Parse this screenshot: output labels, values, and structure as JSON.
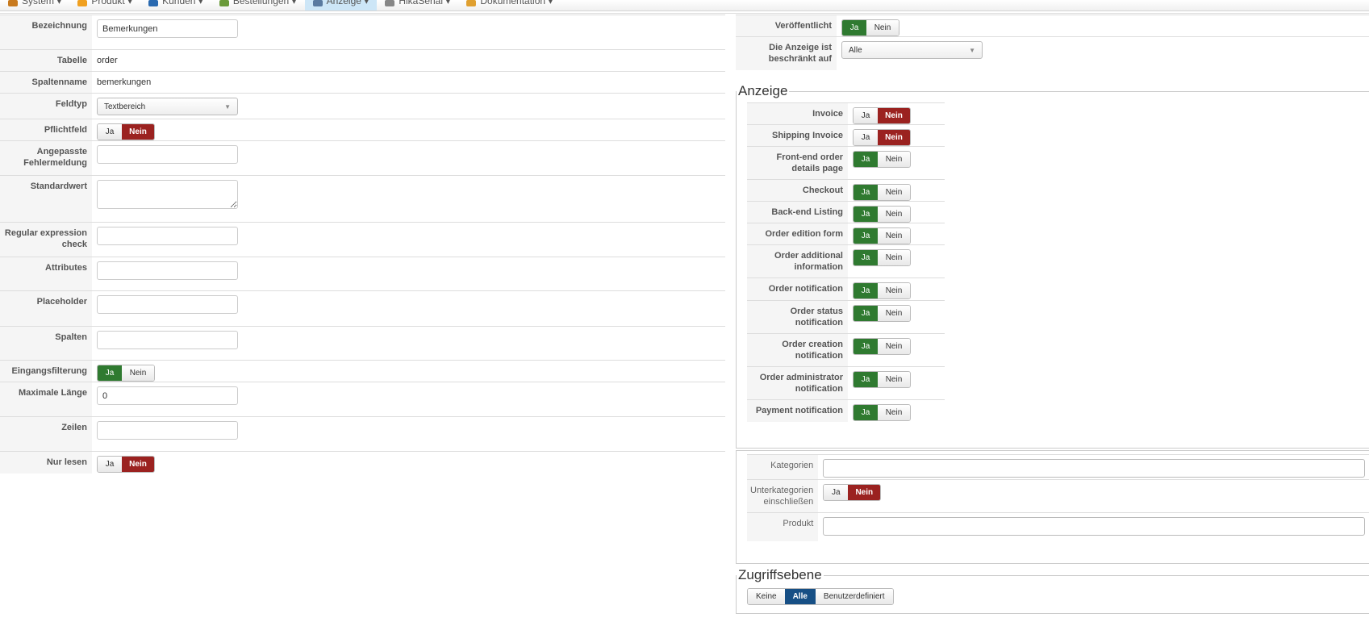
{
  "nav": [
    {
      "label": "System",
      "color": "#c87a1e"
    },
    {
      "label": "Produkt",
      "color": "#f0a020"
    },
    {
      "label": "Kunden",
      "color": "#2a6ab0"
    },
    {
      "label": "Bestellungen",
      "color": "#6a9a3a"
    },
    {
      "label": "Anzeige",
      "color": "#5a7aa0",
      "active": true
    },
    {
      "label": "HikaSerial",
      "color": "#888888"
    },
    {
      "label": "Dokumentation",
      "color": "#e0a030"
    }
  ],
  "left": {
    "bezeichnung": {
      "label": "Bezeichnung",
      "value": "Bemerkungen"
    },
    "tabelle": {
      "label": "Tabelle",
      "value": "order"
    },
    "spaltenname": {
      "label": "Spaltenname",
      "value": "bemerkungen"
    },
    "feldtyp": {
      "label": "Feldtyp",
      "value": "Textbereich"
    },
    "pflichtfeld": {
      "label": "Pflichtfeld",
      "selected": "Nein"
    },
    "fehlermeldung": {
      "label": "Angepasste Fehlermeldung",
      "value": ""
    },
    "standardwert": {
      "label": "Standardwert",
      "value": ""
    },
    "regex": {
      "label": "Regular expression check",
      "value": ""
    },
    "attributes": {
      "label": "Attributes",
      "value": ""
    },
    "placeholder": {
      "label": "Placeholder",
      "value": ""
    },
    "spalten": {
      "label": "Spalten",
      "value": ""
    },
    "eingangsfilterung": {
      "label": "Eingangsfilterung",
      "selected": "Ja"
    },
    "maxlaenge": {
      "label": "Maximale Länge",
      "value": "0"
    },
    "zeilen": {
      "label": "Zeilen",
      "value": ""
    },
    "nurlesen": {
      "label": "Nur lesen",
      "selected": "Nein"
    }
  },
  "toggle": {
    "yes": "Ja",
    "no": "Nein"
  },
  "right": {
    "veroeffentlicht": {
      "label": "Veröffentlicht",
      "selected": "Ja"
    },
    "beschraenkt": {
      "label": "Die Anzeige ist beschränkt auf",
      "value": "Alle"
    },
    "anzeige_legend": "Anzeige",
    "anzeige": [
      {
        "label": "Invoice",
        "selected": "Nein"
      },
      {
        "label": "Shipping Invoice",
        "selected": "Nein"
      },
      {
        "label": "Front-end order details page",
        "selected": "Ja"
      },
      {
        "label": "Checkout",
        "selected": "Ja"
      },
      {
        "label": "Back-end Listing",
        "selected": "Ja"
      },
      {
        "label": "Order edition form",
        "selected": "Ja"
      },
      {
        "label": "Order additional information",
        "selected": "Ja"
      },
      {
        "label": "Order notification",
        "selected": "Ja"
      },
      {
        "label": "Order status notification",
        "selected": "Ja"
      },
      {
        "label": "Order creation notification",
        "selected": "Ja"
      },
      {
        "label": "Order administrator notification",
        "selected": "Ja"
      },
      {
        "label": "Payment notification",
        "selected": "Ja"
      }
    ],
    "kategorien": {
      "label": "Kategorien",
      "value": ""
    },
    "unterkategorien": {
      "label": "Unterkategorien einschließen",
      "selected": "Nein"
    },
    "produkt": {
      "label": "Produkt",
      "value": ""
    },
    "zugriff_legend": "Zugriffsebene",
    "zugriff": {
      "options": [
        "Keine",
        "Alle",
        "Benutzerdefiniert"
      ],
      "selected": "Alle"
    }
  }
}
